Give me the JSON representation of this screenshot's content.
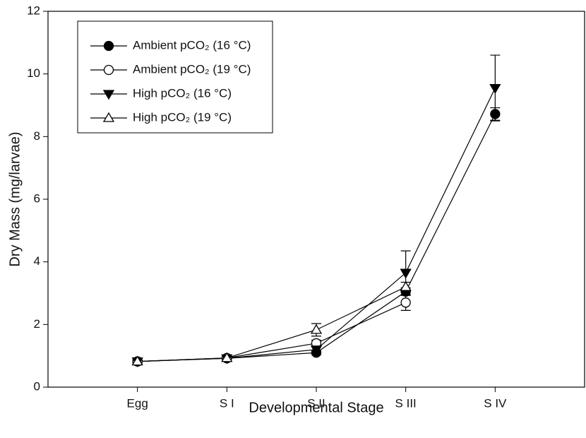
{
  "chart_data": {
    "type": "line",
    "xlabel": "Developmental Stage",
    "ylabel": "Dry Mass (mg/larvae)",
    "categories": [
      "Egg",
      "S I",
      "S II",
      "S III",
      "S IV"
    ],
    "ylim": [
      0,
      12
    ],
    "yticks": [
      0,
      2,
      4,
      6,
      8,
      10,
      12
    ],
    "legend": "upper left",
    "series": [
      {
        "name": "Ambient pCO₂ (16 °C)",
        "color": "#000000",
        "marker": "circle",
        "filled": true,
        "values": [
          0.82,
          0.92,
          1.1,
          3.05,
          8.72
        ],
        "errors": [
          0.05,
          0.04,
          0.06,
          0.12,
          0.2
        ]
      },
      {
        "name": "Ambient pCO₂ (19 °C)",
        "color": "#000000",
        "marker": "circle",
        "filled": false,
        "values": [
          0.82,
          0.93,
          1.4,
          2.7,
          null
        ],
        "errors": [
          0.05,
          0.04,
          0.1,
          0.25,
          null
        ]
      },
      {
        "name": "High pCO₂ (16 °C)",
        "color": "#000000",
        "marker": "triangle-down",
        "filled": true,
        "values": [
          0.82,
          0.92,
          1.2,
          3.65,
          9.55
        ],
        "errors": [
          0.05,
          0.04,
          0.08,
          0.7,
          1.05
        ]
      },
      {
        "name": "High pCO₂ (19 °C)",
        "color": "#000000",
        "marker": "triangle-up",
        "filled": false,
        "values": [
          0.82,
          0.93,
          1.83,
          3.2,
          null
        ],
        "errors": [
          0.05,
          0.04,
          0.2,
          0.15,
          null
        ]
      }
    ]
  }
}
